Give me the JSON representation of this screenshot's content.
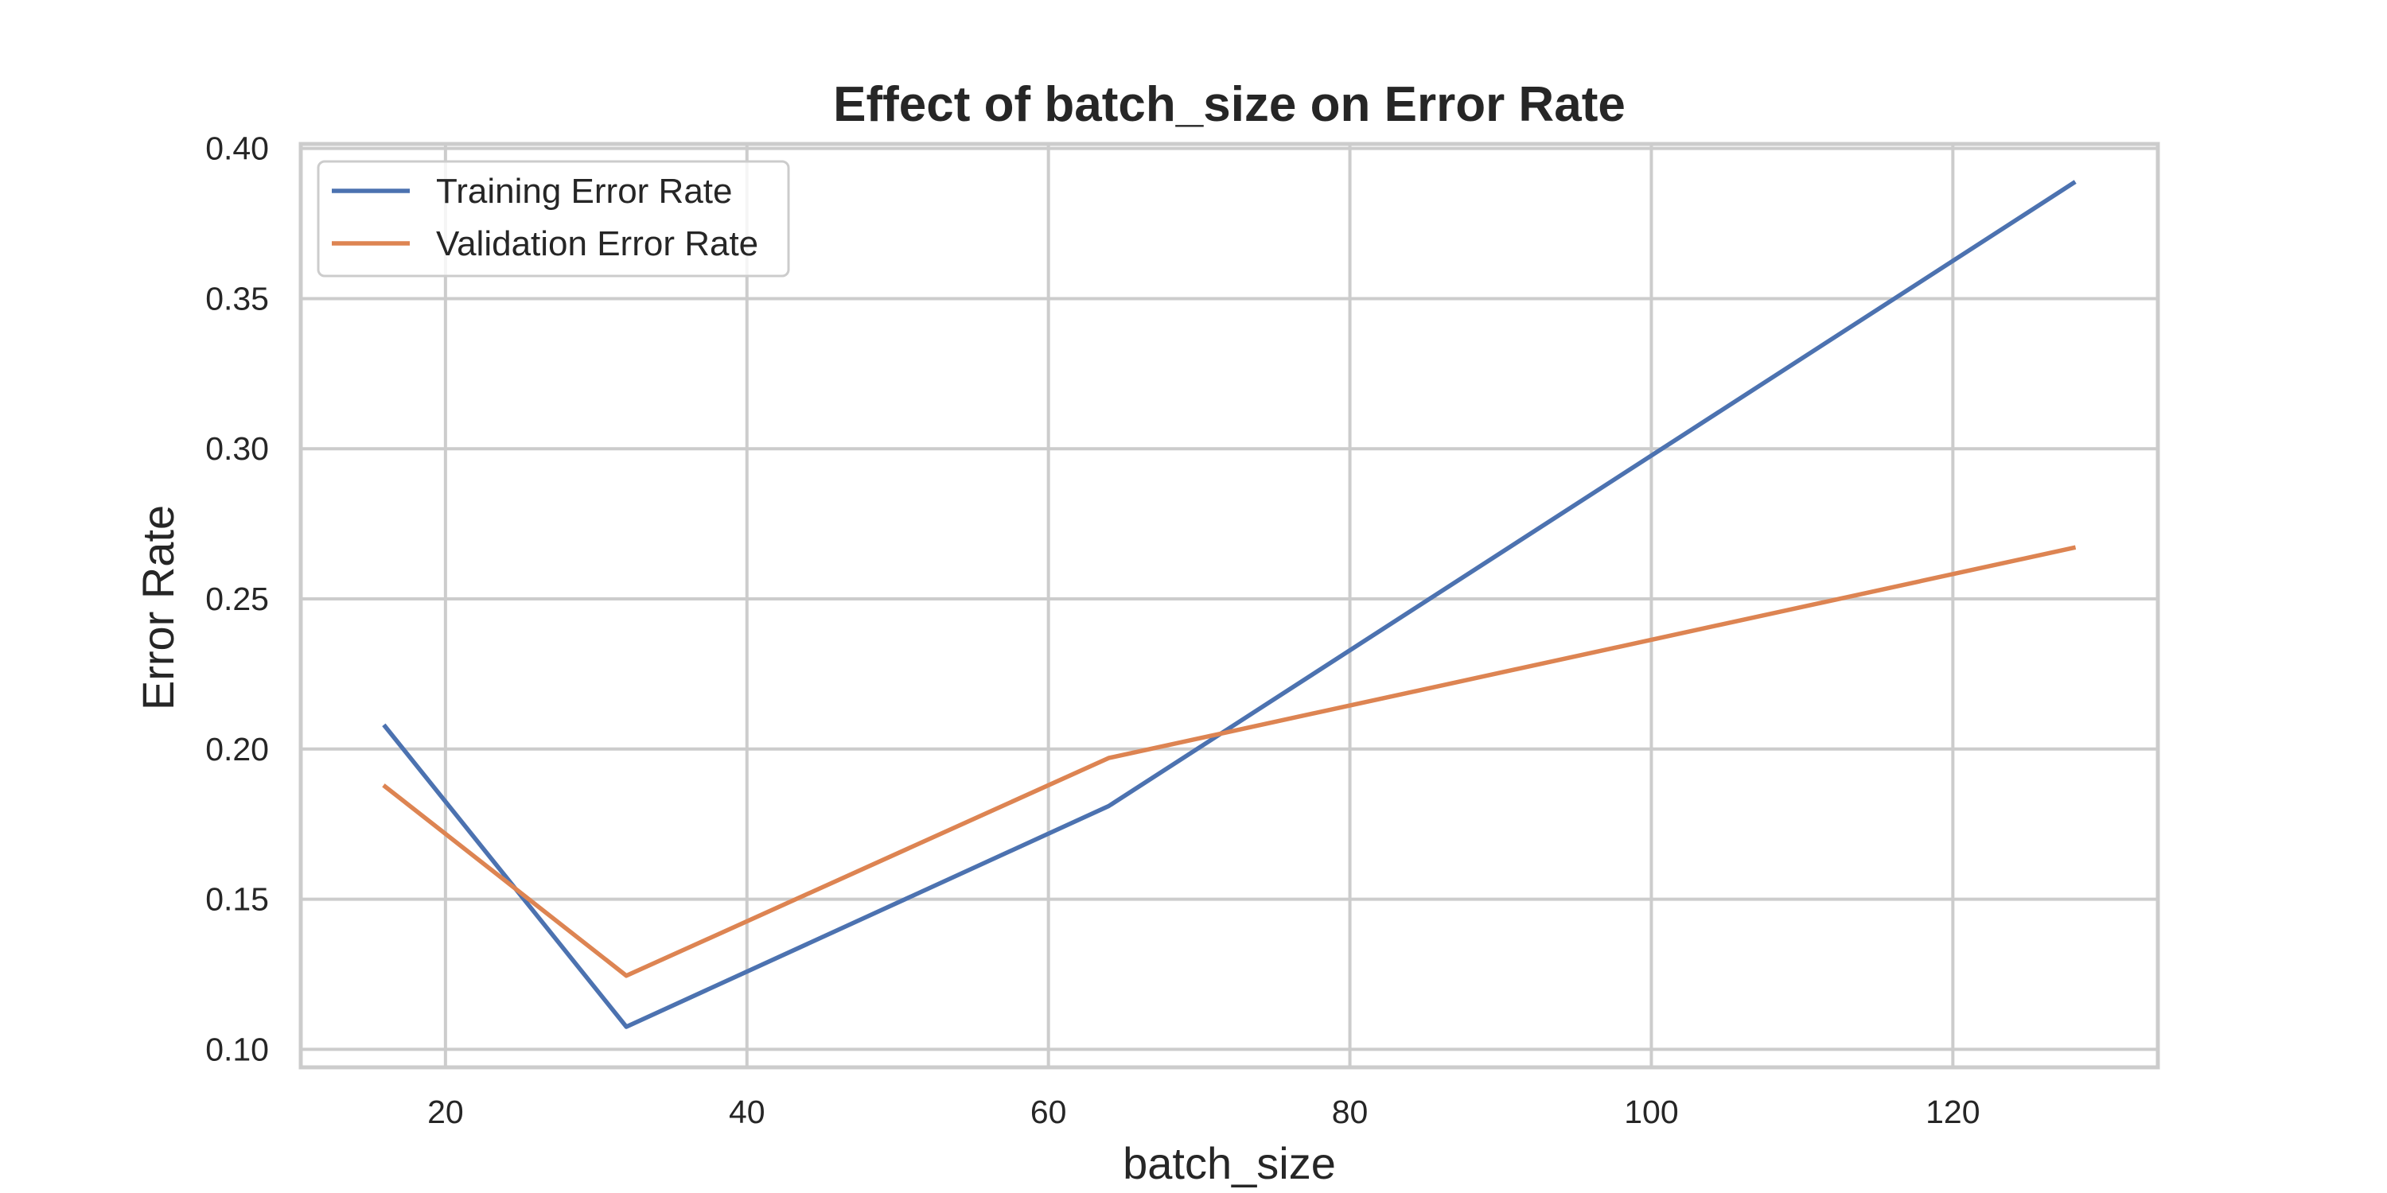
{
  "chart_data": {
    "type": "line",
    "title": "Effect of batch_size on Error Rate",
    "xlabel": "batch_size",
    "ylabel": "Error Rate",
    "x": [
      16,
      32,
      64,
      128
    ],
    "series": [
      {
        "name": "Training Error Rate",
        "color": "#4c72b0",
        "values": [
          0.2075,
          0.1075,
          0.181,
          0.3885
        ]
      },
      {
        "name": "Validation Error Rate",
        "color": "#dd8452",
        "values": [
          0.1875,
          0.1245,
          0.197,
          0.267
        ]
      }
    ],
    "xlim": [
      10.4,
      133.6
    ],
    "ylim": [
      0.094,
      0.4015
    ],
    "xticks": [
      20,
      40,
      60,
      80,
      100,
      120
    ],
    "xtick_labels": [
      "20",
      "40",
      "60",
      "80",
      "100",
      "120"
    ],
    "yticks": [
      0.1,
      0.15,
      0.2,
      0.25,
      0.3,
      0.35,
      0.4
    ],
    "ytick_labels": [
      "0.10",
      "0.15",
      "0.20",
      "0.25",
      "0.30",
      "0.35",
      "0.40"
    ],
    "grid": true,
    "legend_position": "top-left"
  }
}
